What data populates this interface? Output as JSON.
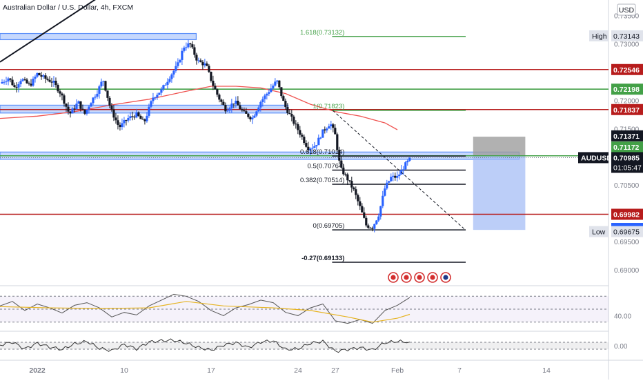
{
  "header": {
    "title": "Australian Dollar / U.S. Dollar, 4h, FXCM",
    "currency": "USD"
  },
  "colors": {
    "up": "#2962ff",
    "down": "#131722",
    "red": "#b71c1c",
    "green": "#43a047",
    "ma": "#ef5350",
    "zone": "#5b8ff9",
    "rsi": "#555555",
    "rsi_ma": "#e6b422",
    "cmo": "#333333",
    "price_pill": "#131722",
    "pill_red": "#b71c1c",
    "pill_green": "#43a047"
  },
  "chart_data": {
    "type": "candlestick",
    "symbol": "AUDUSD",
    "timeframe": "4h",
    "ylim": [
      0.689,
      0.7395
    ],
    "y_ticks": [
      "0.73500",
      "0.73000",
      "0.72500",
      "0.72000",
      "0.71500",
      "0.71000",
      "0.70500",
      "0.70000",
      "0.69500",
      "0.69000"
    ],
    "x_ticks": [
      {
        "label": "2022",
        "day": 3
      },
      {
        "label": "10",
        "day": 10
      },
      {
        "label": "17",
        "day": 17
      },
      {
        "label": "24",
        "day": 24
      },
      {
        "label": "27",
        "day": 27
      },
      {
        "label": "Feb",
        "day": 32
      },
      {
        "label": "7",
        "day": 37
      },
      {
        "label": "14",
        "day": 44
      }
    ],
    "xlim_days": [
      0,
      49
    ],
    "anchors": [
      [
        0.0,
        0.723
      ],
      [
        0.7,
        0.724
      ],
      [
        1.2,
        0.7222
      ],
      [
        1.7,
        0.7238
      ],
      [
        2.4,
        0.7226
      ],
      [
        3.0,
        0.7247
      ],
      [
        3.7,
        0.7238
      ],
      [
        4.3,
        0.7232
      ],
      [
        4.9,
        0.7212
      ],
      [
        5.6,
        0.7175
      ],
      [
        6.3,
        0.7197
      ],
      [
        6.8,
        0.7175
      ],
      [
        7.3,
        0.7197
      ],
      [
        7.9,
        0.7218
      ],
      [
        8.3,
        0.7238
      ],
      [
        8.9,
        0.7185
      ],
      [
        9.6,
        0.7152
      ],
      [
        10.3,
        0.7168
      ],
      [
        11.0,
        0.7175
      ],
      [
        11.6,
        0.716
      ],
      [
        12.3,
        0.7205
      ],
      [
        13.0,
        0.7218
      ],
      [
        13.7,
        0.7243
      ],
      [
        14.3,
        0.7262
      ],
      [
        14.8,
        0.7295
      ],
      [
        15.3,
        0.73
      ],
      [
        15.9,
        0.727
      ],
      [
        16.6,
        0.7262
      ],
      [
        17.1,
        0.723
      ],
      [
        17.6,
        0.7205
      ],
      [
        18.2,
        0.7183
      ],
      [
        18.9,
        0.7198
      ],
      [
        19.6,
        0.7178
      ],
      [
        20.3,
        0.7168
      ],
      [
        21.0,
        0.7198
      ],
      [
        21.6,
        0.7215
      ],
      [
        22.3,
        0.7235
      ],
      [
        22.9,
        0.7192
      ],
      [
        23.6,
        0.7163
      ],
      [
        24.2,
        0.714
      ],
      [
        24.8,
        0.7115
      ],
      [
        25.4,
        0.712
      ],
      [
        26.0,
        0.7145
      ],
      [
        26.6,
        0.716
      ],
      [
        27.0,
        0.7138
      ],
      [
        27.4,
        0.708
      ],
      [
        27.9,
        0.7064
      ],
      [
        28.5,
        0.704
      ],
      [
        29.0,
        0.701
      ],
      [
        29.5,
        0.6978
      ],
      [
        30.0,
        0.6975
      ],
      [
        30.5,
        0.6998
      ],
      [
        31.0,
        0.7045
      ],
      [
        31.5,
        0.7064
      ],
      [
        32.0,
        0.7064
      ],
      [
        32.6,
        0.7085
      ],
      [
        33.1,
        0.7098
      ]
    ],
    "last_price": "0.70985",
    "countdown": "01:05:47",
    "high": {
      "label": "High",
      "value": "0.73143"
    },
    "low": {
      "label": "Low",
      "value": "0.69675"
    },
    "horizontal_levels": [
      {
        "value": 0.72546,
        "label": "0.72546",
        "color": "red",
        "from_day": 0,
        "to_day": 49
      },
      {
        "value": 0.72198,
        "label": "0.72198",
        "color": "green",
        "from_day": 0,
        "to_day": 49
      },
      {
        "value": 0.71837,
        "label": "0.71837",
        "color": "red",
        "from_day": 0,
        "to_day": 49
      },
      {
        "value": 0.71018,
        "label": "0.71018",
        "color": "green",
        "from_day": 0,
        "to_day": 49
      },
      {
        "value": 0.69982,
        "label": "0.69982",
        "color": "red",
        "from_day": 0,
        "to_day": 49
      }
    ],
    "axis_labels": [
      {
        "value": 0.71371,
        "label": "0.71371",
        "color": "price_pill"
      },
      {
        "value": 0.71172,
        "label": "0.71172",
        "color": "pill_green"
      },
      {
        "value": 0.69731,
        "label": "0.69731",
        "color": "up"
      }
    ],
    "zones": [
      {
        "top": 0.7316,
        "bottom": 0.731,
        "from_day": 0,
        "to_day": 15.8
      },
      {
        "top": 0.7189,
        "bottom": 0.718,
        "from_day": 0,
        "to_day": 23.2
      },
      {
        "top": 0.7106,
        "bottom": 0.7098,
        "from_day": 0,
        "to_day": 41.8
      }
    ],
    "fibonacci": {
      "from_day": 26.3,
      "to_day": 37.5,
      "levels": [
        {
          "value": 0.73132,
          "label": "1.618(0.73132)",
          "color": "green"
        },
        {
          "value": 0.71823,
          "label": "1(0.71823)",
          "color": "green"
        },
        {
          "value": 0.71014,
          "label": "0.618(0.71014)",
          "color": "black"
        },
        {
          "value": 0.70764,
          "label": "0.5(0.70764)",
          "color": "black"
        },
        {
          "value": 0.70514,
          "label": "0.382(0.70514)",
          "color": "black"
        },
        {
          "value": 0.69705,
          "label": "0(0.69705)",
          "color": "black"
        },
        {
          "value": 0.69133,
          "label": "-0.27(0.69133)",
          "color": "black"
        }
      ]
    },
    "trend_line": {
      "from": [
        0.0,
        0.7268
      ],
      "to": [
        8.6,
        0.7392
      ]
    },
    "dashed_line": {
      "from": [
        26.8,
        0.7182
      ],
      "to": [
        37.5,
        0.697
      ]
    },
    "position_box": {
      "from_day": 38.1,
      "to_day": 42.3,
      "entry": 0.71018,
      "stop": 0.7121,
      "target": 0.69705
    },
    "moving_average": [
      [
        0.0,
        0.7168
      ],
      [
        3.0,
        0.7172
      ],
      [
        6.0,
        0.718
      ],
      [
        9.0,
        0.7192
      ],
      [
        12.0,
        0.7202
      ],
      [
        15.0,
        0.7216
      ],
      [
        17.0,
        0.7225
      ],
      [
        19.0,
        0.7225
      ],
      [
        21.0,
        0.7222
      ],
      [
        23.0,
        0.7212
      ],
      [
        25.0,
        0.7193
      ],
      [
        27.0,
        0.718
      ],
      [
        29.0,
        0.7172
      ],
      [
        31.0,
        0.716
      ],
      [
        32.0,
        0.7148
      ]
    ],
    "event_icons": 5,
    "rsi": {
      "level": "40.00",
      "values": [
        [
          0,
          55
        ],
        [
          1,
          62
        ],
        [
          2,
          48
        ],
        [
          3,
          58
        ],
        [
          4,
          52
        ],
        [
          5,
          44
        ],
        [
          6,
          56
        ],
        [
          7,
          60
        ],
        [
          8,
          52
        ],
        [
          9,
          38
        ],
        [
          10,
          45
        ],
        [
          11,
          41
        ],
        [
          12,
          55
        ],
        [
          13,
          64
        ],
        [
          14,
          73
        ],
        [
          15,
          70
        ],
        [
          16,
          62
        ],
        [
          17,
          48
        ],
        [
          18,
          40
        ],
        [
          19,
          52
        ],
        [
          20,
          57
        ],
        [
          21,
          64
        ],
        [
          22,
          60
        ],
        [
          23,
          45
        ],
        [
          24,
          40
        ],
        [
          25,
          52
        ],
        [
          26,
          58
        ],
        [
          27,
          32
        ],
        [
          28,
          28
        ],
        [
          29,
          34
        ],
        [
          30,
          28
        ],
        [
          31,
          48
        ],
        [
          32,
          56
        ],
        [
          33,
          68
        ]
      ],
      "ma": [
        [
          0,
          54
        ],
        [
          4,
          52
        ],
        [
          8,
          51
        ],
        [
          12,
          52
        ],
        [
          15,
          62
        ],
        [
          18,
          55
        ],
        [
          22,
          52
        ],
        [
          25,
          48
        ],
        [
          28,
          38
        ],
        [
          30,
          30
        ],
        [
          32,
          36
        ],
        [
          33,
          42
        ]
      ]
    },
    "oscillator": {
      "level": "0.00",
      "values": [
        [
          0,
          0.1
        ],
        [
          1,
          0.6
        ],
        [
          2,
          -0.5
        ],
        [
          3,
          0.4
        ],
        [
          4,
          -0.2
        ],
        [
          5,
          -0.6
        ],
        [
          6,
          0.3
        ],
        [
          7,
          0.7
        ],
        [
          8,
          -0.4
        ],
        [
          9,
          -0.8
        ],
        [
          10,
          0.2
        ],
        [
          11,
          -0.5
        ],
        [
          12,
          0.6
        ],
        [
          13,
          0.8
        ],
        [
          14,
          0.9
        ],
        [
          15,
          0.4
        ],
        [
          16,
          -0.3
        ],
        [
          17,
          -0.7
        ],
        [
          18,
          0.1
        ],
        [
          19,
          0.5
        ],
        [
          20,
          -0.3
        ],
        [
          21,
          0.6
        ],
        [
          22,
          0.8
        ],
        [
          23,
          -0.6
        ],
        [
          24,
          -0.5
        ],
        [
          25,
          0.4
        ],
        [
          26,
          0.7
        ],
        [
          27,
          -0.9
        ],
        [
          28,
          -0.6
        ],
        [
          29,
          -0.3
        ],
        [
          30,
          -0.7
        ],
        [
          31,
          0.5
        ],
        [
          32,
          0.7
        ],
        [
          33,
          0.6
        ]
      ]
    }
  }
}
